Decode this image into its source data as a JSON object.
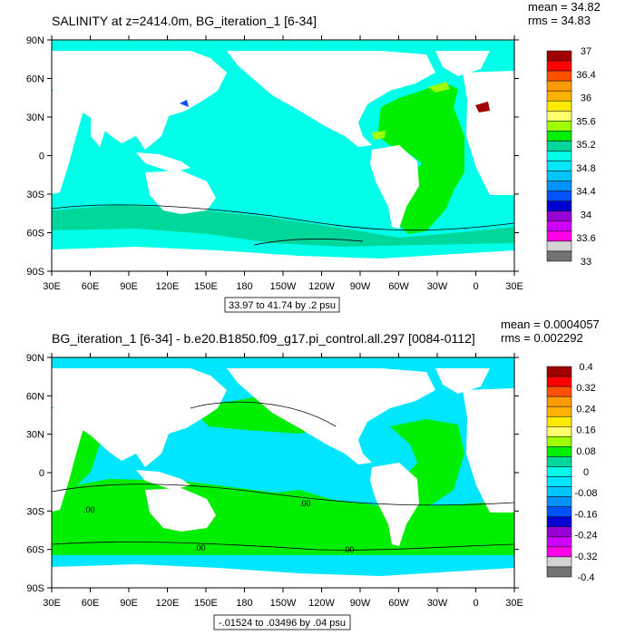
{
  "chart_data": [
    {
      "type": "heatmap",
      "title": "SALINITY at z=2414.0m, BG_iteration_1 [6-34]",
      "stats": [
        "mean = 34.82",
        "rms = 34.83"
      ],
      "xticks": [
        "30E",
        "60E",
        "90E",
        "120E",
        "150E",
        "180",
        "150W",
        "120W",
        "90W",
        "60W",
        "30W",
        "0",
        "30E"
      ],
      "yticks": [
        "90N",
        "60N",
        "30N",
        "0",
        "30S",
        "60S",
        "90S"
      ],
      "xlim": [
        30,
        390
      ],
      "ylim": [
        -90,
        90
      ],
      "range_label": "33.97 to 41.74 by .2 psu",
      "contour_labels": [],
      "colorbar": {
        "labels": [
          "37",
          "36.4",
          "36",
          "35.6",
          "35.2",
          "34.8",
          "34.4",
          "34",
          "33.6",
          "33"
        ],
        "colors": [
          "#a00000",
          "#ff0000",
          "#ff5000",
          "#ff9b00",
          "#ffb300",
          "#ffeb00",
          "#ffff6e",
          "#9fff00",
          "#00ee00",
          "#00d79b",
          "#00ffe8",
          "#00e6ff",
          "#00c6ff",
          "#0092ff",
          "#0052ff",
          "#0000d2",
          "#9700d5",
          "#cf00ff",
          "#ff00e7",
          "#d3d3d3",
          "#737373"
        ]
      },
      "ocean_fill": "#00ffe8"
    },
    {
      "type": "heatmap",
      "title": "BG_iteration_1 [6-34] - b.e20.B1850.f09_g17.pi_control.all.297 [0084-0112]",
      "stats": [
        "mean = 0.0004057",
        "rms = 0.002292"
      ],
      "xticks": [
        "30E",
        "60E",
        "90E",
        "120E",
        "150E",
        "180",
        "150W",
        "120W",
        "90W",
        "60W",
        "30W",
        "0",
        "30E"
      ],
      "yticks": [
        "90N",
        "60N",
        "30N",
        "0",
        "30S",
        "60S",
        "90S"
      ],
      "xlim": [
        30,
        390
      ],
      "ylim": [
        -90,
        90
      ],
      "range_label": "-.01524 to .03496 by .04 psu",
      "contour_labels": [
        ".00",
        ".00",
        ".00",
        ".00"
      ],
      "colorbar": {
        "labels": [
          "0.4",
          "0.32",
          "0.24",
          "0.16",
          "0.08",
          "0",
          "-0.08",
          "-0.16",
          "-0.24",
          "-0.32",
          "-0.4"
        ],
        "colors": [
          "#a00000",
          "#ff0000",
          "#ff5000",
          "#ff9b00",
          "#ffb300",
          "#ffeb00",
          "#ffff6e",
          "#9fff00",
          "#00ee00",
          "#00d79b",
          "#00ffe8",
          "#00e6ff",
          "#00c6ff",
          "#0092ff",
          "#0052ff",
          "#0000d2",
          "#9700d5",
          "#cf00ff",
          "#ff00e7",
          "#d3d3d3",
          "#737373"
        ]
      },
      "ocean_fill": "#00e6ff"
    }
  ]
}
